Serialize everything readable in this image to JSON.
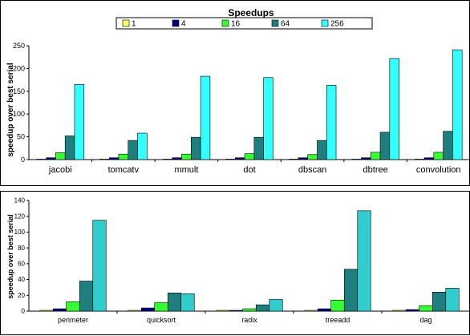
{
  "chart_data": [
    {
      "type": "bar",
      "title": "Speedups",
      "ylabel": "speedup over best serial",
      "xlabel": "",
      "ylim": [
        0,
        250
      ],
      "yticks": [
        0,
        50,
        100,
        150,
        200,
        250
      ],
      "grid": false,
      "legend_position": "top-center",
      "categories": [
        "jacobi",
        "tomcatv",
        "mmult",
        "dot",
        "dbscan",
        "dbtree",
        "convolution"
      ],
      "series": [
        {
          "name": "1",
          "color": "#ffff66",
          "values": [
            1,
            1,
            1,
            1,
            1,
            1,
            1
          ]
        },
        {
          "name": "4",
          "color": "#000080",
          "values": [
            4,
            4,
            4,
            4,
            4,
            4,
            4
          ]
        },
        {
          "name": "16",
          "color": "#33ff33",
          "values": [
            15,
            12,
            12,
            13,
            11,
            16,
            16
          ]
        },
        {
          "name": "64",
          "color": "#1f7f7f",
          "values": [
            52,
            42,
            49,
            49,
            42,
            60,
            62
          ]
        },
        {
          "name": "256",
          "color": "#33ffff",
          "values": [
            165,
            58,
            183,
            180,
            163,
            222,
            241
          ]
        }
      ]
    },
    {
      "type": "bar",
      "title": "",
      "ylabel": "speedup over best serial",
      "xlabel": "",
      "ylim": [
        0,
        140
      ],
      "yticks": [
        0,
        20,
        40,
        60,
        80,
        100,
        120,
        140
      ],
      "grid": false,
      "categories": [
        "perimeter",
        "quicksort",
        "radix",
        "treeadd",
        "dag"
      ],
      "series": [
        {
          "name": "1",
          "color": "#ffff66",
          "values": [
            1,
            1,
            1,
            1,
            1
          ]
        },
        {
          "name": "4",
          "color": "#000080",
          "values": [
            3,
            4,
            1,
            3,
            2
          ]
        },
        {
          "name": "16",
          "color": "#33ff33",
          "values": [
            12,
            11,
            3,
            14,
            7
          ]
        },
        {
          "name": "64",
          "color": "#1f7f7f",
          "values": [
            38,
            23,
            8,
            53,
            24
          ]
        },
        {
          "name": "256",
          "color": "#33cccc",
          "values": [
            115,
            22,
            15,
            127,
            29
          ]
        }
      ]
    }
  ]
}
